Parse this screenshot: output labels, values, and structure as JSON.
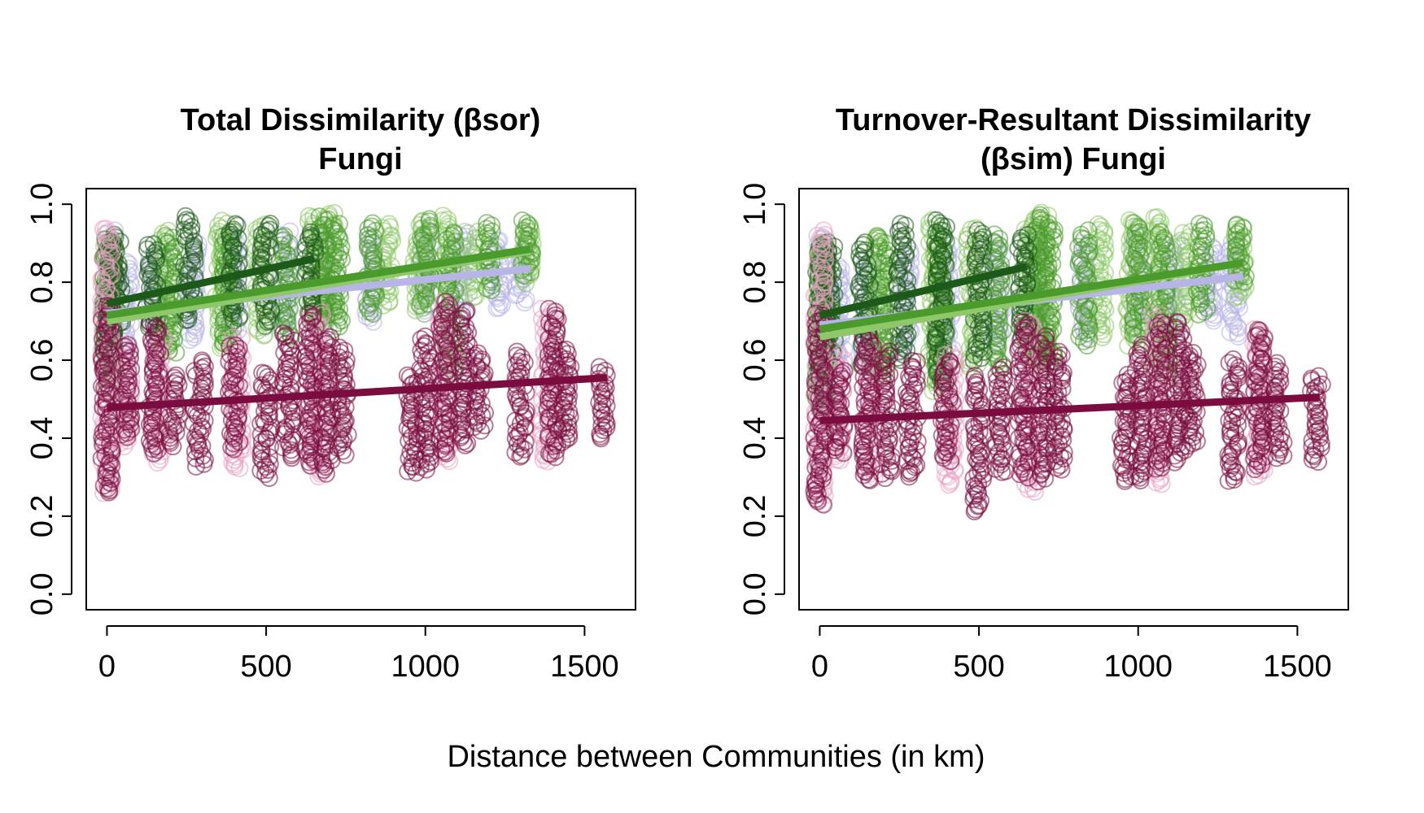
{
  "figure": {
    "xlabel": "Distance between Communities (in km)"
  },
  "colors": {
    "crimson": "#7a0c3f",
    "pink": "#e7a3c2",
    "lavender": "#b7b4e6",
    "lightgreen": "#8ec86a",
    "green": "#4a9a2c",
    "darkgreen": "#1d5a1a"
  },
  "chart_data": [
    {
      "type": "scatter",
      "title": "Total Dissimilarity (βsor)",
      "subtitle": "Fungi",
      "xlabel": "Distance between Communities (in km)",
      "ylabel": "",
      "xlim": [
        -65,
        1660
      ],
      "ylim": [
        -0.04,
        1.04
      ],
      "xticks": [
        0,
        500,
        1000,
        1500
      ],
      "xtick_labels": [
        "0",
        "500",
        "1000",
        "1500"
      ],
      "yticks": [
        0.0,
        0.2,
        0.4,
        0.6,
        0.8,
        1.0
      ],
      "ytick_labels": [
        "0.0",
        "0.2",
        "0.4",
        "0.6",
        "0.8",
        "1.0"
      ],
      "grid": false,
      "legend": "none",
      "series": [
        {
          "color": "lavender",
          "columns": [
            [
              10,
              0.5,
              0.93
            ],
            [
              60,
              0.62,
              0.85
            ],
            [
              150,
              0.64,
              0.88
            ],
            [
              270,
              0.65,
              0.9
            ],
            [
              400,
              0.66,
              0.93
            ],
            [
              560,
              0.68,
              0.93
            ],
            [
              680,
              0.68,
              0.94
            ],
            [
              830,
              0.7,
              0.92
            ],
            [
              1000,
              0.72,
              0.94
            ],
            [
              1110,
              0.72,
              0.93
            ],
            [
              1230,
              0.73,
              0.91
            ],
            [
              1300,
              0.75,
              0.89
            ]
          ],
          "trend": [
            [
              0,
              0.72
            ],
            [
              1330,
              0.835
            ]
          ]
        },
        {
          "color": "lightgreen",
          "columns": [
            [
              10,
              0.52,
              0.91
            ],
            [
              180,
              0.62,
              0.93
            ],
            [
              360,
              0.63,
              0.96
            ],
            [
              480,
              0.66,
              0.95
            ],
            [
              650,
              0.68,
              0.97
            ],
            [
              700,
              0.7,
              0.98
            ],
            [
              880,
              0.74,
              0.95
            ],
            [
              980,
              0.72,
              0.96
            ],
            [
              1060,
              0.78,
              0.97
            ],
            [
              1150,
              0.76,
              0.93
            ],
            [
              1320,
              0.8,
              0.94
            ]
          ],
          "trend": [
            [
              0,
              0.7
            ],
            [
              1330,
              0.88
            ]
          ]
        },
        {
          "color": "green",
          "columns": [
            [
              10,
              0.56,
              0.9
            ],
            [
              200,
              0.62,
              0.92
            ],
            [
              380,
              0.64,
              0.93
            ],
            [
              560,
              0.66,
              0.92
            ],
            [
              680,
              0.7,
              0.97
            ],
            [
              720,
              0.68,
              0.95
            ],
            [
              830,
              0.72,
              0.95
            ],
            [
              1000,
              0.74,
              0.96
            ],
            [
              1080,
              0.57,
              0.93
            ],
            [
              1200,
              0.78,
              0.95
            ],
            [
              1320,
              0.82,
              0.96
            ]
          ],
          "trend": [
            [
              0,
              0.715
            ],
            [
              1330,
              0.885
            ]
          ]
        },
        {
          "color": "darkgreen",
          "columns": [
            [
              5,
              0.58,
              0.91
            ],
            [
              30,
              0.66,
              0.92
            ],
            [
              140,
              0.68,
              0.9
            ],
            [
              260,
              0.7,
              0.97
            ],
            [
              400,
              0.7,
              0.95
            ],
            [
              500,
              0.69,
              0.95
            ],
            [
              640,
              0.72,
              0.93
            ]
          ],
          "trend": [
            [
              0,
              0.745
            ],
            [
              650,
              0.86
            ]
          ]
        },
        {
          "color": "pink",
          "columns": [
            [
              0,
              0.26,
              0.94
            ],
            [
              60,
              0.38,
              0.64
            ],
            [
              160,
              0.34,
              0.66
            ],
            [
              410,
              0.32,
              0.66
            ],
            [
              660,
              0.3,
              0.72
            ],
            [
              1060,
              0.34,
              0.75
            ],
            [
              1380,
              0.34,
              0.73
            ]
          ],
          "trend": []
        },
        {
          "color": "crimson",
          "columns": [
            [
              0,
              0.26,
              0.74
            ],
            [
              60,
              0.4,
              0.64
            ],
            [
              150,
              0.36,
              0.7
            ],
            [
              210,
              0.38,
              0.56
            ],
            [
              290,
              0.33,
              0.6
            ],
            [
              400,
              0.37,
              0.64
            ],
            [
              500,
              0.3,
              0.57
            ],
            [
              570,
              0.35,
              0.67
            ],
            [
              640,
              0.33,
              0.72
            ],
            [
              690,
              0.31,
              0.66
            ],
            [
              740,
              0.36,
              0.63
            ],
            [
              960,
              0.31,
              0.56
            ],
            [
              1000,
              0.32,
              0.66
            ],
            [
              1060,
              0.36,
              0.75
            ],
            [
              1120,
              0.38,
              0.73
            ],
            [
              1170,
              0.42,
              0.62
            ],
            [
              1300,
              0.35,
              0.62
            ],
            [
              1400,
              0.35,
              0.73
            ],
            [
              1440,
              0.39,
              0.63
            ],
            [
              1560,
              0.4,
              0.58
            ]
          ],
          "trend": [
            [
              0,
              0.478
            ],
            [
              1570,
              0.555
            ]
          ]
        }
      ]
    },
    {
      "type": "scatter",
      "title": "Turnover-Resultant Dissimilarity",
      "subtitle": "(βsim) Fungi",
      "xlabel": "Distance between Communities (in km)",
      "ylabel": "",
      "xlim": [
        -65,
        1660
      ],
      "ylim": [
        -0.04,
        1.04
      ],
      "xticks": [
        0,
        500,
        1000,
        1500
      ],
      "xtick_labels": [
        "0",
        "500",
        "1000",
        "1500"
      ],
      "yticks": [
        0.0,
        0.2,
        0.4,
        0.6,
        0.8,
        1.0
      ],
      "ytick_labels": [
        "0.0",
        "0.2",
        "0.4",
        "0.6",
        "0.8",
        "1.0"
      ],
      "grid": false,
      "legend": "none",
      "series": [
        {
          "color": "lavender",
          "columns": [
            [
              10,
              0.48,
              0.92
            ],
            [
              60,
              0.58,
              0.84
            ],
            [
              150,
              0.6,
              0.86
            ],
            [
              270,
              0.62,
              0.88
            ],
            [
              400,
              0.63,
              0.9
            ],
            [
              560,
              0.64,
              0.9
            ],
            [
              680,
              0.65,
              0.92
            ],
            [
              830,
              0.66,
              0.9
            ],
            [
              1000,
              0.68,
              0.92
            ],
            [
              1110,
              0.68,
              0.9
            ],
            [
              1230,
              0.7,
              0.89
            ],
            [
              1300,
              0.66,
              0.9
            ]
          ],
          "trend": [
            [
              0,
              0.69
            ],
            [
              1330,
              0.815
            ]
          ]
        },
        {
          "color": "lightgreen",
          "columns": [
            [
              10,
              0.5,
              0.9
            ],
            [
              180,
              0.58,
              0.92
            ],
            [
              360,
              0.52,
              0.96
            ],
            [
              480,
              0.58,
              0.94
            ],
            [
              660,
              0.6,
              0.96
            ],
            [
              700,
              0.62,
              0.98
            ],
            [
              880,
              0.66,
              0.95
            ],
            [
              980,
              0.64,
              0.96
            ],
            [
              1060,
              0.58,
              0.97
            ],
            [
              1150,
              0.7,
              0.93
            ],
            [
              1320,
              0.76,
              0.94
            ]
          ],
          "trend": [
            [
              0,
              0.66
            ],
            [
              1330,
              0.85
            ]
          ]
        },
        {
          "color": "green",
          "columns": [
            [
              10,
              0.52,
              0.89
            ],
            [
              200,
              0.56,
              0.92
            ],
            [
              380,
              0.54,
              0.93
            ],
            [
              560,
              0.58,
              0.92
            ],
            [
              680,
              0.58,
              0.97
            ],
            [
              720,
              0.6,
              0.95
            ],
            [
              830,
              0.64,
              0.93
            ],
            [
              1000,
              0.66,
              0.95
            ],
            [
              1080,
              0.56,
              0.93
            ],
            [
              1200,
              0.72,
              0.95
            ],
            [
              1320,
              0.8,
              0.95
            ]
          ],
          "trend": [
            [
              0,
              0.68
            ],
            [
              1330,
              0.85
            ]
          ]
        },
        {
          "color": "darkgreen",
          "columns": [
            [
              5,
              0.48,
              0.9
            ],
            [
              30,
              0.6,
              0.9
            ],
            [
              140,
              0.58,
              0.9
            ],
            [
              260,
              0.6,
              0.95
            ],
            [
              380,
              0.54,
              0.96
            ],
            [
              500,
              0.6,
              0.93
            ],
            [
              640,
              0.66,
              0.92
            ]
          ],
          "trend": [
            [
              0,
              0.715
            ],
            [
              650,
              0.84
            ]
          ]
        },
        {
          "color": "pink",
          "columns": [
            [
              0,
              0.23,
              0.93
            ],
            [
              60,
              0.34,
              0.62
            ],
            [
              160,
              0.3,
              0.64
            ],
            [
              410,
              0.28,
              0.62
            ],
            [
              660,
              0.26,
              0.7
            ],
            [
              1060,
              0.28,
              0.72
            ],
            [
              1380,
              0.3,
              0.68
            ]
          ],
          "trend": []
        },
        {
          "color": "crimson",
          "columns": [
            [
              0,
              0.23,
              0.72
            ],
            [
              60,
              0.36,
              0.58
            ],
            [
              150,
              0.29,
              0.67
            ],
            [
              210,
              0.3,
              0.62
            ],
            [
              290,
              0.3,
              0.6
            ],
            [
              400,
              0.34,
              0.6
            ],
            [
              500,
              0.21,
              0.56
            ],
            [
              570,
              0.31,
              0.58
            ],
            [
              640,
              0.3,
              0.7
            ],
            [
              700,
              0.29,
              0.66
            ],
            [
              750,
              0.32,
              0.62
            ],
            [
              960,
              0.29,
              0.56
            ],
            [
              1010,
              0.29,
              0.64
            ],
            [
              1070,
              0.32,
              0.7
            ],
            [
              1130,
              0.34,
              0.7
            ],
            [
              1170,
              0.38,
              0.62
            ],
            [
              1300,
              0.29,
              0.6
            ],
            [
              1380,
              0.32,
              0.68
            ],
            [
              1440,
              0.35,
              0.59
            ],
            [
              1560,
              0.34,
              0.56
            ]
          ],
          "trend": [
            [
              0,
              0.445
            ],
            [
              1570,
              0.505
            ]
          ]
        }
      ]
    }
  ]
}
